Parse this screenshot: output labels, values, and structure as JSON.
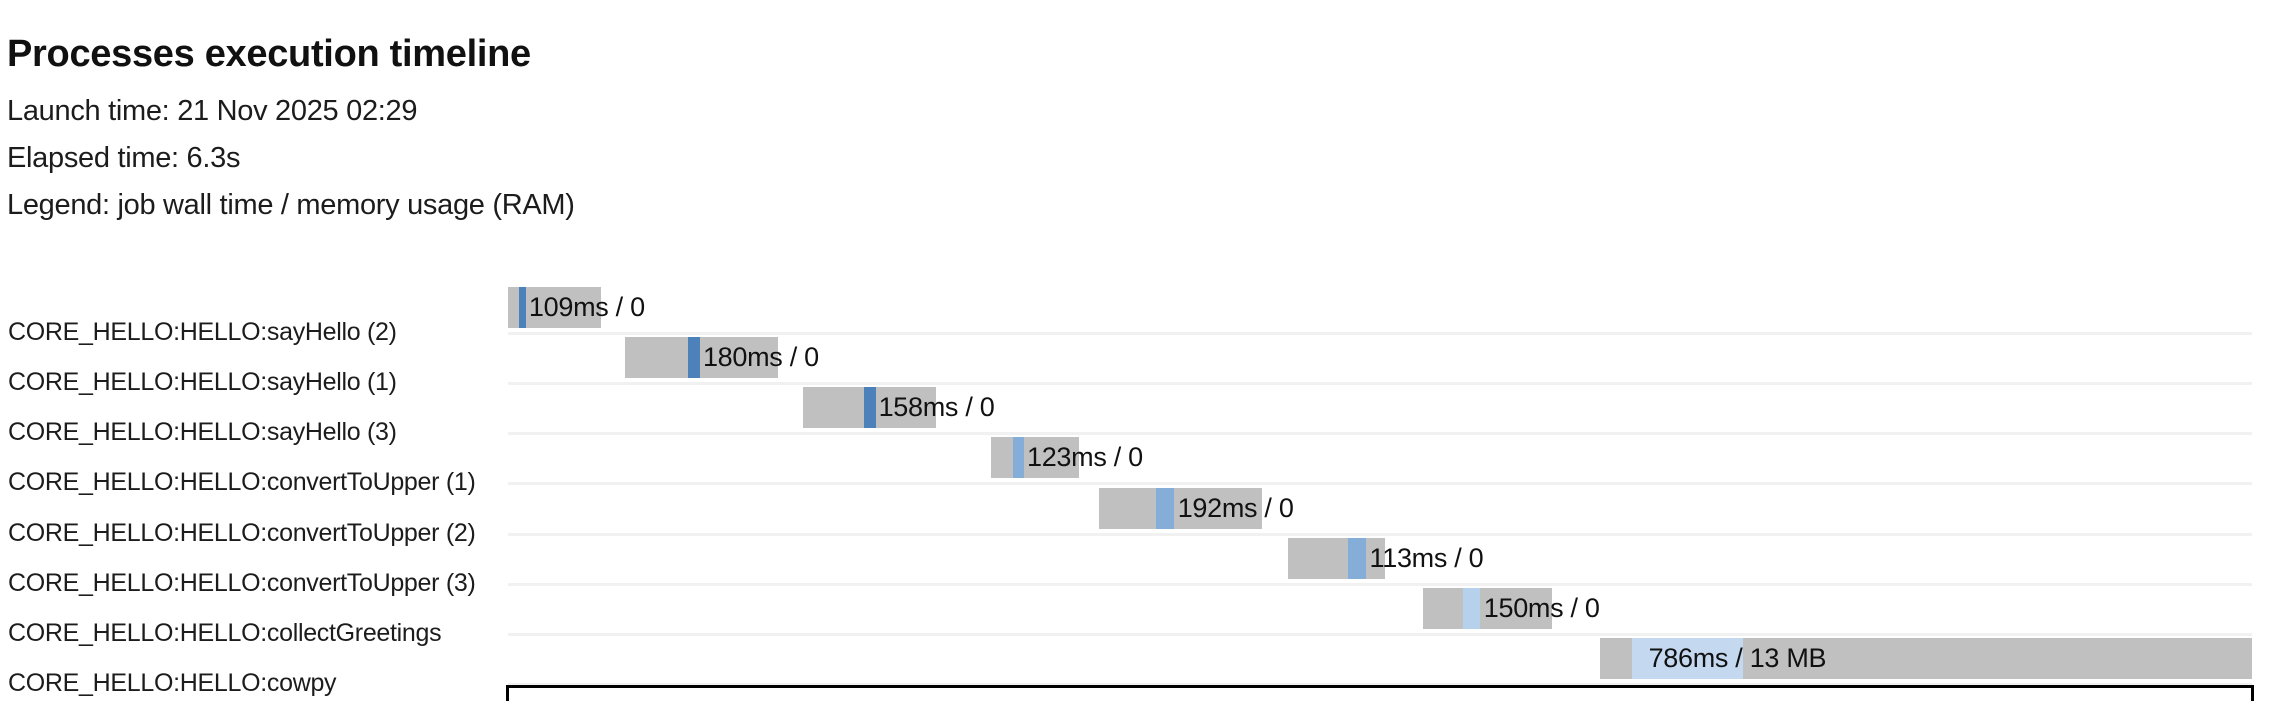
{
  "page": {
    "title": "Processes execution timeline",
    "launch_time_line": "Launch time: 21 Nov 2025 02:29",
    "elapsed_time_line": "Elapsed time: 6.3s",
    "legend_line": "Legend: job wall time / memory usage (RAM)"
  },
  "chart_data": {
    "type": "bar",
    "variant": "gantt-process-timeline",
    "title": "Processes execution timeline",
    "launch_time": "21 Nov 2025 02:29",
    "elapsed_time": "6.3s",
    "legend": "job wall time / memory usage (RAM)",
    "x_axis": {
      "unit": "seconds since launch",
      "min_s": 0,
      "max_s": 6.3,
      "tick_labels_visible": false,
      "axis_color": "#000000"
    },
    "colors": {
      "queue_segment": "#c0c0c0",
      "process_sayHello": "#4d81b9",
      "process_convertToUpper": "#84aed8",
      "process_collectGreetings": "#b5d1ec",
      "process_cowpy": "#c4d9f0",
      "row_separator": "#f1f1f1",
      "bar_label_text": "#111111"
    },
    "tasks": [
      {
        "name": "CORE_HELLO:HELLO:sayHello (2)",
        "process": "sayHello",
        "wall_time": "109ms",
        "memory": "0",
        "label": "109ms / 0",
        "start_s": 0.0,
        "end_s": 0.34,
        "bar_start_pct": 0.0,
        "bar_end_pct": 5.33,
        "run_start_pct": 0.63,
        "run_end_pct": 1.03,
        "label_pct": 1.2,
        "run_color": "#4d81b9"
      },
      {
        "name": "CORE_HELLO:HELLO:sayHello (1)",
        "process": "sayHello",
        "wall_time": "180ms",
        "memory": "0",
        "label": "180ms / 0",
        "start_s": 0.42,
        "end_s": 0.98,
        "bar_start_pct": 6.71,
        "bar_end_pct": 15.48,
        "run_start_pct": 10.32,
        "run_end_pct": 11.01,
        "label_pct": 11.18,
        "run_color": "#4d81b9"
      },
      {
        "name": "CORE_HELLO:HELLO:sayHello (3)",
        "process": "sayHello",
        "wall_time": "158ms",
        "memory": "0",
        "label": "158ms / 0",
        "start_s": 1.07,
        "end_s": 1.55,
        "bar_start_pct": 16.92,
        "bar_end_pct": 24.54,
        "run_start_pct": 20.41,
        "run_end_pct": 21.1,
        "label_pct": 21.25,
        "run_color": "#4d81b9"
      },
      {
        "name": "CORE_HELLO:HELLO:convertToUpper (1)",
        "process": "convertToUpper",
        "wall_time": "123ms",
        "memory": "0",
        "label": "123ms / 0",
        "start_s": 1.74,
        "end_s": 2.06,
        "bar_start_pct": 27.69,
        "bar_end_pct": 32.74,
        "run_start_pct": 28.96,
        "run_end_pct": 29.59,
        "label_pct": 29.76,
        "run_color": "#84aed8"
      },
      {
        "name": "CORE_HELLO:HELLO:convertToUpper (2)",
        "process": "convertToUpper",
        "wall_time": "192ms",
        "memory": "0",
        "label": "192ms / 0",
        "start_s": 2.14,
        "end_s": 2.72,
        "bar_start_pct": 33.89,
        "bar_end_pct": 43.23,
        "run_start_pct": 37.15,
        "run_end_pct": 38.2,
        "label_pct": 38.4,
        "run_color": "#84aed8"
      },
      {
        "name": "CORE_HELLO:HELLO:convertToUpper (3)",
        "process": "convertToUpper",
        "wall_time": "113ms",
        "memory": "0",
        "label": "113ms / 0",
        "start_s": 2.82,
        "end_s": 3.17,
        "bar_start_pct": 44.72,
        "bar_end_pct": 50.29,
        "run_start_pct": 48.17,
        "run_end_pct": 49.2,
        "label_pct": 49.4,
        "run_color": "#84aed8"
      },
      {
        "name": "CORE_HELLO:HELLO:collectGreetings",
        "process": "collectGreetings",
        "wall_time": "150ms",
        "memory": "0",
        "label": "150ms / 0",
        "start_s": 3.31,
        "end_s": 3.77,
        "bar_start_pct": 52.47,
        "bar_end_pct": 59.86,
        "run_start_pct": 54.76,
        "run_end_pct": 55.73,
        "label_pct": 55.95,
        "run_color": "#b5d1ec"
      },
      {
        "name": "CORE_HELLO:HELLO:cowpy",
        "process": "cowpy",
        "wall_time": "786ms",
        "memory": "13 MB",
        "label": "786ms / 13 MB",
        "start_s": 3.94,
        "end_s": 6.3,
        "bar_start_pct": 62.61,
        "bar_end_pct": 100.0,
        "run_start_pct": 64.45,
        "run_end_pct": 70.81,
        "label_pct": 65.4,
        "run_color": "#c4d9f0"
      }
    ]
  }
}
